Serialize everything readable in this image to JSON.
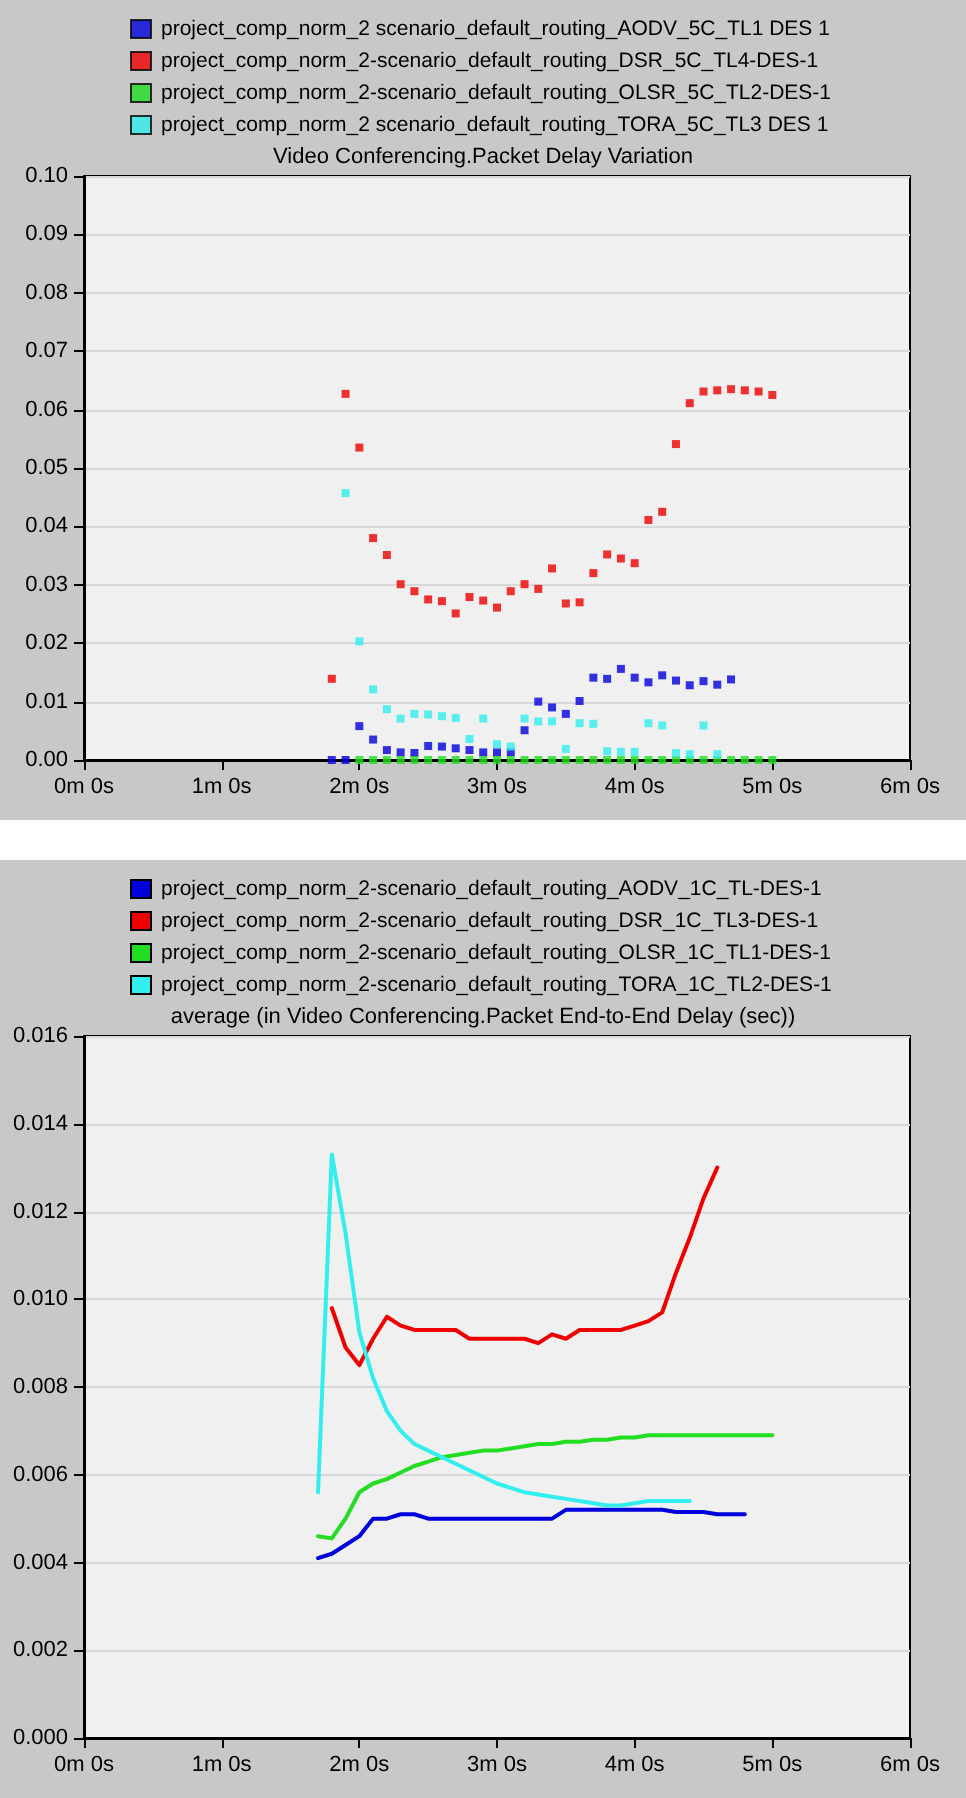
{
  "chart_data": [
    {
      "type": "scatter",
      "title": "Video Conferencing.Packet Delay Variation",
      "legend": "top",
      "grid": "y",
      "marker": "square",
      "categories": [
        "0m 0s",
        null,
        null,
        null,
        null,
        null,
        null,
        null,
        null,
        null,
        "1m 0s",
        null,
        null,
        null,
        null,
        null,
        null,
        null,
        null,
        null,
        "2m 0s",
        null,
        null,
        null,
        null,
        null,
        null,
        null,
        null,
        null,
        "3m 0s",
        null,
        null,
        null,
        null,
        null,
        null,
        null,
        null,
        null,
        "4m 0s",
        null,
        null,
        null,
        null,
        null,
        null,
        null,
        null,
        null,
        "5m 0s",
        null,
        null,
        null,
        null,
        null,
        null,
        null,
        null,
        null,
        "6m 0s"
      ],
      "ylim": [
        0,
        0.1
      ],
      "yticks": [
        {
          "value": 0,
          "label": "0.00"
        },
        {
          "value": 0.01,
          "label": "0.01"
        },
        {
          "value": 0.02,
          "label": "0.02"
        },
        {
          "value": 0.03,
          "label": "0.03"
        },
        {
          "value": 0.04,
          "label": "0.04"
        },
        {
          "value": 0.05,
          "label": "0.05"
        },
        {
          "value": 0.06,
          "label": "0.06"
        },
        {
          "value": 0.07,
          "label": "0.07"
        },
        {
          "value": 0.08,
          "label": "0.08"
        },
        {
          "value": 0.09,
          "label": "0.09"
        },
        {
          "value": 0.1,
          "label": "0.10"
        }
      ],
      "series": [
        {
          "name": "project_comp_norm_2 scenario_default_routing_AODV_5C_TL1 DES 1",
          "color": "#0000dd",
          "values": [
            null,
            null,
            null,
            null,
            null,
            null,
            null,
            null,
            null,
            null,
            null,
            null,
            null,
            null,
            null,
            null,
            null,
            null,
            0.0,
            0.0,
            0.0058,
            0.0035,
            0.0017,
            0.0013,
            0.0012,
            0.0024,
            0.0023,
            0.002,
            0.0017,
            0.0013,
            0.0013,
            0.0013,
            0.0051,
            0.01,
            0.009,
            0.0079,
            0.0101,
            0.0141,
            0.0139,
            0.0156,
            0.0141,
            0.0133,
            0.0145,
            0.0136,
            0.0128,
            0.0135,
            0.0129,
            0.0138,
            null,
            null,
            null,
            null,
            null,
            null,
            null,
            null,
            null,
            null,
            null,
            null,
            null
          ]
        },
        {
          "name": "project_comp_norm_2-scenario_default_routing_DSR_5C_TL4-DES-1",
          "color": "#ee0000",
          "values": [
            null,
            null,
            null,
            null,
            null,
            null,
            null,
            null,
            null,
            null,
            null,
            null,
            null,
            null,
            null,
            null,
            null,
            null,
            0.0139,
            0.0627,
            0.0535,
            0.038,
            0.0351,
            0.0301,
            0.0289,
            0.0275,
            0.0272,
            0.0251,
            0.0279,
            0.0273,
            0.0261,
            0.0289,
            0.0301,
            0.0293,
            0.0328,
            0.0268,
            0.027,
            0.032,
            0.0352,
            0.0345,
            0.0337,
            0.0411,
            0.0425,
            0.0541,
            0.0611,
            0.0631,
            0.0633,
            0.0635,
            0.0633,
            0.0631,
            0.0625,
            null,
            null,
            null,
            null,
            null,
            null,
            null,
            null,
            null,
            null
          ]
        },
        {
          "name": "project_comp_norm_2-scenario_default_routing_OLSR_5C_TL2-DES-1",
          "color": "#22dd22",
          "values": [
            null,
            null,
            null,
            null,
            null,
            null,
            null,
            null,
            null,
            null,
            null,
            null,
            null,
            null,
            null,
            null,
            null,
            null,
            null,
            null,
            0,
            0,
            0,
            0,
            0,
            0,
            0,
            0,
            0,
            0,
            0,
            0,
            0,
            0,
            0,
            0,
            0,
            0,
            0,
            0,
            0,
            0,
            0,
            0,
            0,
            0,
            0,
            0,
            0,
            0,
            0,
            null,
            null,
            null,
            null,
            null,
            null,
            null,
            null,
            null,
            null
          ]
        },
        {
          "name": "project_comp_norm_2 scenario_default_routing_TORA_5C_TL3 DES 1",
          "color": "#33eeee",
          "values": [
            null,
            null,
            null,
            null,
            null,
            null,
            null,
            null,
            null,
            null,
            null,
            null,
            null,
            null,
            null,
            null,
            null,
            null,
            null,
            0.0457,
            0.0203,
            0.0121,
            0.0087,
            0.0071,
            0.0079,
            0.0078,
            0.0075,
            0.0072,
            0.0036,
            0.0071,
            0.0027,
            0.0023,
            0.0071,
            0.0066,
            0.0066,
            0.0019,
            0.0063,
            0.0062,
            0.0015,
            0.0014,
            0.0014,
            0.0063,
            0.0059,
            0.0012,
            0.001,
            0.0059,
            0.001,
            null,
            null,
            null,
            null,
            null,
            null,
            null,
            null,
            null,
            null,
            null,
            null,
            null,
            null
          ]
        }
      ]
    },
    {
      "type": "line",
      "title": "average (in Video Conferencing.Packet End-to-End Delay (sec))",
      "legend": "top",
      "grid": "y",
      "marker": "none",
      "line_style": "solid",
      "categories": [
        "0m 0s",
        null,
        null,
        null,
        null,
        null,
        null,
        null,
        null,
        null,
        "1m 0s",
        null,
        null,
        null,
        null,
        null,
        null,
        null,
        null,
        null,
        "2m 0s",
        null,
        null,
        null,
        null,
        null,
        null,
        null,
        null,
        null,
        "3m 0s",
        null,
        null,
        null,
        null,
        null,
        null,
        null,
        null,
        null,
        "4m 0s",
        null,
        null,
        null,
        null,
        null,
        null,
        null,
        null,
        null,
        "5m 0s",
        null,
        null,
        null,
        null,
        null,
        null,
        null,
        null,
        null,
        "6m 0s"
      ],
      "ylim": [
        0,
        0.016
      ],
      "yticks": [
        {
          "value": 0,
          "label": "0.000"
        },
        {
          "value": 0.002,
          "label": "0.002"
        },
        {
          "value": 0.004,
          "label": "0.004"
        },
        {
          "value": 0.006,
          "label": "0.006"
        },
        {
          "value": 0.008,
          "label": "0.008"
        },
        {
          "value": 0.01,
          "label": "0.010"
        },
        {
          "value": 0.012,
          "label": "0.012"
        },
        {
          "value": 0.014,
          "label": "0.014"
        },
        {
          "value": 0.016,
          "label": "0.016"
        }
      ],
      "series": [
        {
          "name": "project_comp_norm_2-scenario_default_routing_AODV_1C_TL-DES-1",
          "color": "#0000dd",
          "values": [
            null,
            null,
            null,
            null,
            null,
            null,
            null,
            null,
            null,
            null,
            null,
            null,
            null,
            null,
            null,
            null,
            null,
            0.0041,
            0.0042,
            0.0044,
            0.0046,
            0.005,
            0.005,
            0.0051,
            0.0051,
            0.005,
            0.005,
            0.005,
            0.005,
            0.005,
            0.005,
            0.005,
            0.005,
            0.005,
            0.005,
            0.0052,
            0.0052,
            0.0052,
            0.0052,
            0.0052,
            0.0052,
            0.0052,
            0.0052,
            0.00515,
            0.00515,
            0.00515,
            0.0051,
            0.0051,
            0.0051,
            null,
            null,
            null,
            null,
            null,
            null,
            null,
            null,
            null,
            null,
            null,
            null
          ]
        },
        {
          "name": "project_comp_norm_2-scenario_default_routing_DSR_1C_TL3-DES-1",
          "color": "#ee0000",
          "values": [
            null,
            null,
            null,
            null,
            null,
            null,
            null,
            null,
            null,
            null,
            null,
            null,
            null,
            null,
            null,
            null,
            null,
            null,
            0.0098,
            0.0089,
            0.0085,
            0.0091,
            0.0096,
            0.0094,
            0.0093,
            0.0093,
            0.0093,
            0.0093,
            0.0091,
            0.0091,
            0.0091,
            0.0091,
            0.0091,
            0.009,
            0.0092,
            0.0091,
            0.0093,
            0.0093,
            0.0093,
            0.0093,
            0.0094,
            0.0095,
            0.0097,
            0.0106,
            0.0114,
            0.0123,
            0.013,
            null,
            null,
            null,
            null,
            null,
            null,
            null,
            null,
            null,
            null,
            null,
            null,
            null,
            null
          ]
        },
        {
          "name": "project_comp_norm_2-scenario_default_routing_OLSR_1C_TL1-DES-1",
          "color": "#22dd22",
          "values": [
            null,
            null,
            null,
            null,
            null,
            null,
            null,
            null,
            null,
            null,
            null,
            null,
            null,
            null,
            null,
            null,
            null,
            0.0046,
            0.00455,
            0.005,
            0.0056,
            0.0058,
            0.0059,
            0.00605,
            0.0062,
            0.0063,
            0.0064,
            0.00645,
            0.0065,
            0.00655,
            0.00655,
            0.0066,
            0.00665,
            0.0067,
            0.0067,
            0.00675,
            0.00675,
            0.0068,
            0.0068,
            0.00685,
            0.00685,
            0.0069,
            0.0069,
            0.0069,
            0.0069,
            0.0069,
            0.0069,
            0.0069,
            0.0069,
            0.0069,
            0.0069,
            null,
            null,
            null,
            null,
            null,
            null,
            null,
            null,
            null,
            null
          ]
        },
        {
          "name": "project_comp_norm_2-scenario_default_routing_TORA_1C_TL2-DES-1",
          "color": "#33eeee",
          "values": [
            null,
            null,
            null,
            null,
            null,
            null,
            null,
            null,
            null,
            null,
            null,
            null,
            null,
            null,
            null,
            null,
            null,
            0.0056,
            0.0133,
            0.0115,
            0.00925,
            0.0082,
            0.00745,
            0.007,
            0.0067,
            0.00655,
            0.0064,
            0.00625,
            0.0061,
            0.00595,
            0.0058,
            0.0057,
            0.0056,
            0.00555,
            0.0055,
            0.00545,
            0.0054,
            0.00535,
            0.0053,
            0.0053,
            0.00535,
            0.0054,
            0.0054,
            0.0054,
            0.0054,
            null,
            null,
            null,
            null,
            null,
            null,
            null,
            null,
            null,
            null,
            null,
            null,
            null,
            null,
            null,
            null
          ]
        }
      ]
    }
  ]
}
